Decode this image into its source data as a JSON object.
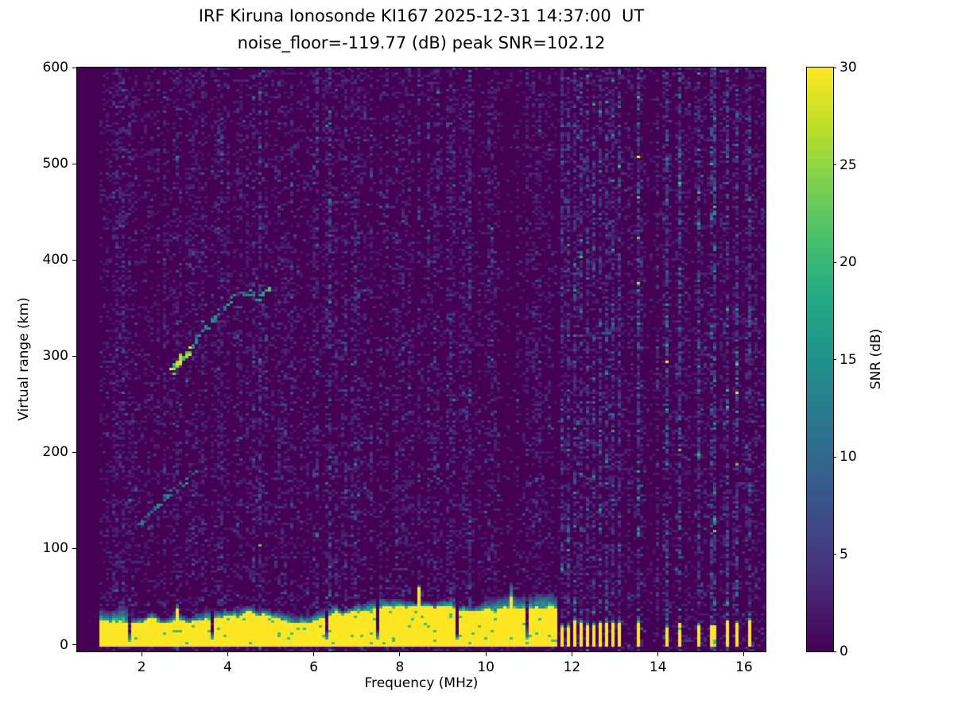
{
  "chart_data": {
    "type": "heatmap",
    "title_line1": "IRF Kiruna Ionosonde KI167 2025-12-31 14:37:00  UT",
    "title_line2": "noise_floor=-119.77 (dB) peak SNR=102.12",
    "xlabel": "Frequency (MHz)",
    "ylabel": "Virtual range (km)",
    "colorbar_label": "SNR (dB)",
    "station": "IRF Kiruna Ionosonde KI167",
    "timestamp": "2025-12-31 14:37:00 UT",
    "noise_floor_db": -119.77,
    "peak_snr_db": 102.12,
    "xlim": [
      0.5,
      16.5
    ],
    "ylim": [
      -7,
      600
    ],
    "clim": [
      0,
      30
    ],
    "xticks": [
      2,
      4,
      6,
      8,
      10,
      12,
      14,
      16
    ],
    "yticks": [
      0,
      100,
      200,
      300,
      400,
      500,
      600
    ],
    "colorbar_ticks": [
      0,
      5,
      10,
      15,
      20,
      25,
      30
    ],
    "colormap": {
      "name": "viridis",
      "anchors": [
        "#440154",
        "#482475",
        "#414487",
        "#355f8d",
        "#2a788e",
        "#21918c",
        "#22a884",
        "#44bf70",
        "#7ad151",
        "#bddf26",
        "#fde725"
      ]
    },
    "features": {
      "ground_clutter": {
        "freq_start_mhz": 1.0,
        "freq_end_mhz": 11.65,
        "mean_top_km": 30,
        "snr_db": 30
      },
      "clutter_gaps_mhz": [
        1.7,
        3.6,
        6.3,
        7.5,
        9.3,
        10.9
      ],
      "e_trace": {
        "snr_db": 12,
        "points_mhz_km": [
          [
            1.95,
            123
          ],
          [
            2.25,
            138
          ],
          [
            2.55,
            152
          ],
          [
            2.85,
            163
          ],
          [
            3.1,
            172
          ],
          [
            3.35,
            182
          ]
        ]
      },
      "f_trace": {
        "snr_db": 22,
        "peak_mhz": 2.9,
        "peak_km": 292,
        "points_mhz_km": [
          [
            2.7,
            285
          ],
          [
            2.9,
            294
          ],
          [
            3.1,
            305
          ],
          [
            3.3,
            318
          ],
          [
            3.5,
            330
          ],
          [
            3.75,
            342
          ],
          [
            4.0,
            354
          ],
          [
            4.2,
            362
          ],
          [
            4.45,
            366
          ],
          [
            4.7,
            362
          ],
          [
            5.0,
            370
          ]
        ]
      },
      "interference_bars_mhz": [
        11.75,
        11.9,
        12.05,
        12.2,
        12.35,
        12.5,
        12.65,
        12.8,
        12.95,
        13.1,
        13.5,
        14.15,
        14.5,
        14.9,
        15.25,
        15.55,
        15.8,
        16.1
      ],
      "noisy_columns_mhz": [
        9.6
      ]
    }
  }
}
